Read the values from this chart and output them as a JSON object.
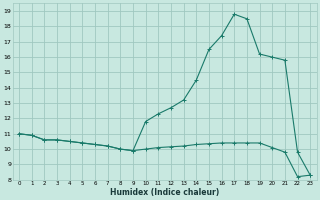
{
  "xlabel": "Humidex (Indice chaleur)",
  "bg_color": "#c8e8e0",
  "grid_color": "#a0c8c0",
  "line_color": "#1a7a6a",
  "xlim": [
    -0.5,
    23.5
  ],
  "ylim": [
    8,
    19.5
  ],
  "xticks": [
    0,
    1,
    2,
    3,
    4,
    5,
    6,
    7,
    8,
    9,
    10,
    11,
    12,
    13,
    14,
    15,
    16,
    17,
    18,
    19,
    20,
    21,
    22,
    23
  ],
  "yticks": [
    8,
    9,
    10,
    11,
    12,
    13,
    14,
    15,
    16,
    17,
    18,
    19
  ],
  "line1_x": [
    0,
    1,
    2,
    3,
    4,
    5,
    6,
    7,
    8,
    9,
    10,
    11,
    12,
    13,
    14,
    15,
    16,
    17,
    18,
    19,
    20,
    21,
    22,
    23
  ],
  "line1_y": [
    11.0,
    10.9,
    10.6,
    10.6,
    10.5,
    10.4,
    10.3,
    10.2,
    10.0,
    9.9,
    10.0,
    10.1,
    10.15,
    10.2,
    10.3,
    10.35,
    10.4,
    10.4,
    10.4,
    10.4,
    10.1,
    9.8,
    8.2,
    8.3
  ],
  "line2_x": [
    0,
    1,
    2,
    3,
    4,
    5,
    6,
    7,
    8,
    9,
    10,
    11,
    12,
    13,
    14,
    15,
    16,
    17,
    18,
    19,
    20,
    21,
    22,
    23
  ],
  "line2_y": [
    11.0,
    10.9,
    10.6,
    10.6,
    10.5,
    10.4,
    10.3,
    10.2,
    10.0,
    9.9,
    11.8,
    12.3,
    12.7,
    13.2,
    14.5,
    16.5,
    17.4,
    18.8,
    18.5,
    16.2,
    16.0,
    15.8,
    9.8,
    8.3
  ],
  "figsize": [
    3.2,
    2.0
  ],
  "dpi": 100
}
